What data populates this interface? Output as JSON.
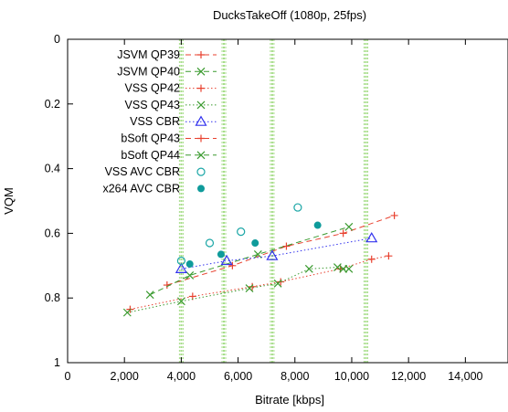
{
  "chart_data": {
    "type": "line",
    "title": "DucksTakeOff (1080p, 25fps)",
    "xlabel": "Bitrate [kbps]",
    "ylabel": "VQM",
    "xlim": [
      0,
      15500
    ],
    "ylim": [
      0,
      1
    ],
    "y_inverted": true,
    "grid": false,
    "legend_position": "top-left",
    "x_ticks": [
      {
        "value": 0,
        "label": "0"
      },
      {
        "value": 2000,
        "label": "2,000"
      },
      {
        "value": 4000,
        "label": "4,000"
      },
      {
        "value": 6000,
        "label": "6,000"
      },
      {
        "value": 8000,
        "label": "8,000"
      },
      {
        "value": 10000,
        "label": "10,000"
      },
      {
        "value": 12000,
        "label": "12,000"
      },
      {
        "value": 14000,
        "label": "14,000"
      }
    ],
    "y_ticks": [
      {
        "value": 0,
        "label": "0"
      },
      {
        "value": 0.2,
        "label": "0.2"
      },
      {
        "value": 0.4,
        "label": "0.4"
      },
      {
        "value": 0.6,
        "label": "0.6"
      },
      {
        "value": 0.8,
        "label": "0.8"
      },
      {
        "value": 1,
        "label": "1"
      }
    ],
    "vertical_bands": [
      4000,
      5500,
      7200,
      10500
    ],
    "band_color": "#a6dd88",
    "series": [
      {
        "name": "JSVM QP39",
        "marker": "plus",
        "color": "#e8412f",
        "line": "dashed",
        "x": [
          3500,
          5800,
          7700,
          9700,
          11500
        ],
        "y": [
          0.76,
          0.7,
          0.64,
          0.6,
          0.545
        ]
      },
      {
        "name": "JSVM QP40",
        "marker": "x",
        "color": "#3a9a2f",
        "line": "dashed",
        "x": [
          2900,
          4300,
          6700,
          9900
        ],
        "y": [
          0.79,
          0.73,
          0.665,
          0.58
        ]
      },
      {
        "name": "VSS QP42",
        "marker": "plus",
        "color": "#e8412f",
        "line": "dotted",
        "x": [
          2200,
          4400,
          6500,
          7500,
          9600,
          10700,
          11300
        ],
        "y": [
          0.835,
          0.795,
          0.765,
          0.75,
          0.71,
          0.68,
          0.67
        ]
      },
      {
        "name": "VSS QP43",
        "marker": "x",
        "color": "#3a9a2f",
        "line": "dotted",
        "x": [
          2100,
          4000,
          6400,
          7400,
          8500,
          9500,
          9700,
          9900
        ],
        "y": [
          0.845,
          0.81,
          0.77,
          0.755,
          0.71,
          0.705,
          0.71,
          0.71
        ]
      },
      {
        "name": "VSS CBR",
        "marker": "triangle",
        "color": "#3333ee",
        "line": "dotted",
        "x": [
          4000,
          5600,
          7200,
          10700
        ],
        "y": [
          0.71,
          0.685,
          0.67,
          0.615
        ]
      },
      {
        "name": "bSoft QP43",
        "marker": "plus",
        "color": "#e8412f",
        "line": "dashed",
        "x": [],
        "y": []
      },
      {
        "name": "bSoft QP44",
        "marker": "x",
        "color": "#3a9a2f",
        "line": "dashed",
        "x": [],
        "y": []
      },
      {
        "name": "VSS AVC CBR",
        "marker": "circle-open",
        "color": "#1aa6a6",
        "line": "none",
        "x": [
          4000,
          5000,
          6100,
          8100
        ],
        "y": [
          0.685,
          0.63,
          0.595,
          0.52
        ]
      },
      {
        "name": "x264 AVC CBR",
        "marker": "circle-filled",
        "color": "#0f9b9b",
        "line": "none",
        "x": [
          4300,
          5400,
          6600,
          8800
        ],
        "y": [
          0.695,
          0.665,
          0.63,
          0.575
        ]
      }
    ]
  }
}
